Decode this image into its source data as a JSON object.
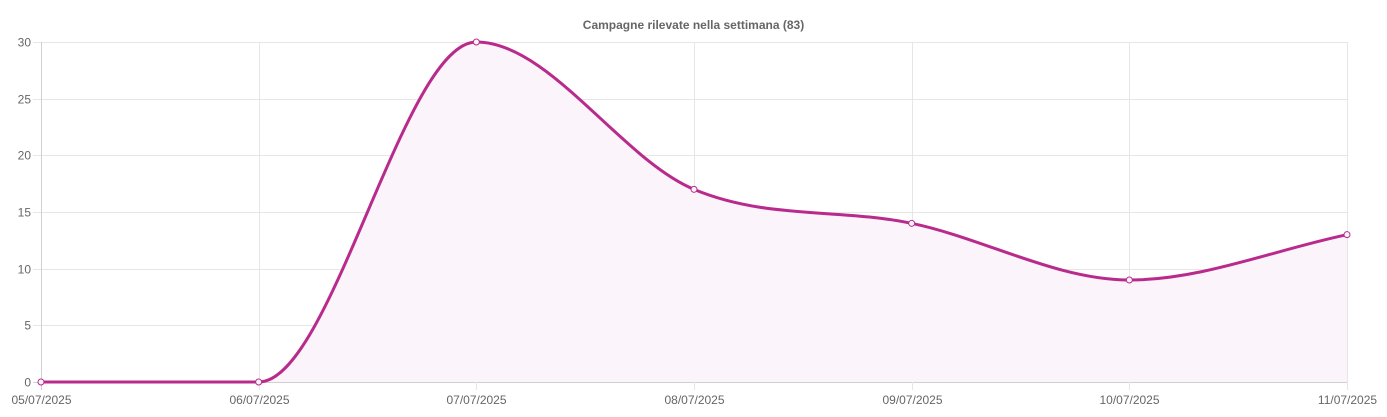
{
  "chart_data": {
    "type": "line",
    "title": "Campagne rilevate nella settimana (83)",
    "xlabel": "",
    "ylabel": "",
    "x": [
      "05/07/2025",
      "06/07/2025",
      "07/07/2025",
      "08/07/2025",
      "09/07/2025",
      "10/07/2025",
      "11/07/2025"
    ],
    "series": [
      {
        "values": [
          0,
          0,
          30,
          17,
          14,
          9,
          13
        ],
        "color": "#b82b8c",
        "fill": "#fbf4fa"
      }
    ],
    "ylim": [
      0,
      30
    ],
    "yticks": [
      "0",
      "5",
      "10",
      "15",
      "20",
      "25",
      "30"
    ],
    "grid": true,
    "legend": "none",
    "colors": {
      "line": "#b82b8c",
      "fill": "#fbf4fa",
      "grid": "#e6e6e6",
      "text": "#666666"
    }
  }
}
